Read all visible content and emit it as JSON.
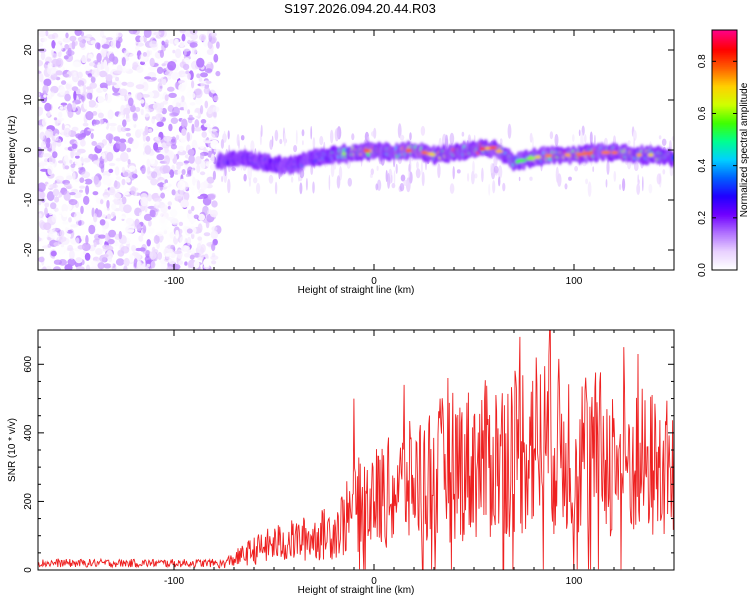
{
  "title": "S197.2026.094.20.44.R03",
  "chart_data": [
    {
      "type": "heatmap",
      "name": "spectrogram",
      "xlabel": "Height of straight line (km)",
      "ylabel": "Frequency (Hz)",
      "xlim": [
        -168,
        150
      ],
      "ylim": [
        -24,
        24
      ],
      "xticks": [
        -100,
        0,
        100
      ],
      "yticks": [
        -20,
        -10,
        0,
        10,
        20
      ],
      "colorbar": {
        "label": "Normalized spectral amplitude",
        "range": [
          0.0,
          0.92
        ],
        "ticks": [
          "0.0",
          "0.2",
          "0.4",
          "0.6",
          "0.8"
        ],
        "colormap": [
          "#ffffff",
          "#e8d0ff",
          "#b070ff",
          "#7000ff",
          "#2000ff",
          "#0060ff",
          "#00d0ff",
          "#00ff90",
          "#40ff00",
          "#d0ff00",
          "#ffd000",
          "#ff6000",
          "#ff0000",
          "#ff0080"
        ]
      },
      "regions": [
        {
          "x_range": [
            -168,
            -78
          ],
          "description": "noise",
          "amplitude_range": [
            0.0,
            0.15
          ]
        },
        {
          "x_range": [
            -78,
            150
          ],
          "description": "signal line",
          "center_freq_hz": -1.0,
          "amplitude_range": [
            0.1,
            0.9
          ]
        }
      ],
      "line_center": {
        "x": [
          -78,
          -70,
          -60,
          -50,
          -40,
          -30,
          -20,
          -10,
          0,
          10,
          20,
          30,
          40,
          50,
          60,
          70,
          80,
          90,
          100,
          110,
          120,
          130,
          140,
          150
        ],
        "freq": [
          -2.5,
          -1.5,
          -2.0,
          -3.0,
          -3.0,
          -1.5,
          -1.0,
          -0.5,
          0.0,
          -0.5,
          0.0,
          -1.0,
          -0.5,
          0.0,
          0.5,
          -2.5,
          -1.5,
          -1.0,
          -1.0,
          -0.5,
          -0.5,
          -1.0,
          -1.0,
          -1.5
        ],
        "peak_amp": [
          0.35,
          0.3,
          0.35,
          0.3,
          0.35,
          0.4,
          0.55,
          0.75,
          0.85,
          0.8,
          0.85,
          0.8,
          0.85,
          0.8,
          0.85,
          0.6,
          0.7,
          0.8,
          0.85,
          0.8,
          0.85,
          0.75,
          0.7,
          0.6
        ]
      }
    },
    {
      "type": "line",
      "name": "snr",
      "xlabel": "Height of straight line (km)",
      "ylabel": "SNR (10 * v/v)",
      "xlim": [
        -168,
        150
      ],
      "ylim": [
        0,
        700
      ],
      "xticks": [
        -100,
        0,
        100
      ],
      "yticks": [
        0,
        200,
        400,
        600
      ],
      "color": "#ee2020",
      "trend": {
        "x": [
          -168,
          -80,
          -75,
          -60,
          -50,
          -40,
          -30,
          -20,
          -10,
          -5,
          0,
          10,
          20,
          30,
          40,
          50,
          60,
          70,
          80,
          90,
          100,
          110,
          120,
          130,
          140,
          150
        ],
        "y": [
          15,
          15,
          20,
          60,
          80,
          90,
          100,
          120,
          180,
          220,
          220,
          240,
          270,
          300,
          320,
          330,
          340,
          370,
          400,
          380,
          370,
          360,
          340,
          330,
          320,
          300
        ]
      },
      "peaks": {
        "x": [
          -10,
          15,
          37,
          73,
          88,
          125,
          132
        ],
        "y": [
          500,
          540,
          560,
          680,
          700,
          650,
          630
        ]
      }
    }
  ]
}
